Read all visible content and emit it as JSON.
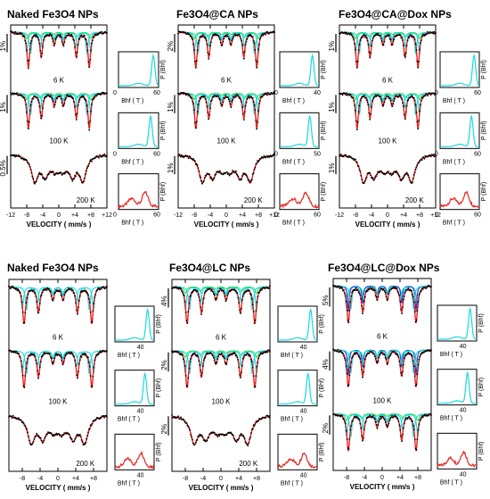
{
  "colors": {
    "data": "#000000",
    "fit": "#e8231f",
    "sextet_cyan": "#19d8df",
    "sextet_green": "#38e04a",
    "sextet_blue": "#2233cc",
    "dist": "#19d8df",
    "dist_200k": "#e8231f"
  },
  "chart_data": {
    "type": "line",
    "panels": [
      {
        "title": "Naked Fe3O4 NPs",
        "x_ticks": [
          "-12",
          "-8",
          "-4",
          "0",
          "+4",
          "+8",
          "+12"
        ],
        "xlim": [
          -12,
          12
        ],
        "x_label": "VELOCITY ( mm/s )",
        "spectra": [
          {
            "temperature": "6 K",
            "scale": "1%",
            "components": [
              "green",
              "cyan",
              "cyan"
            ]
          },
          {
            "temperature": "100 K",
            "scale": "1%",
            "components": [
              "green",
              "cyan",
              "cyan"
            ]
          },
          {
            "temperature": "200 K",
            "scale": "0.5%",
            "components": []
          }
        ],
        "distributions": [
          {
            "x_label": "Bhf ( T )",
            "y_label": "P (Bhf)",
            "ticks": [
              "0",
              "60"
            ],
            "peak": 52
          },
          {
            "x_label": "Bhf ( T )",
            "y_label": "P (Bhf)",
            "ticks": [
              "0",
              "60"
            ],
            "peak": 48
          },
          {
            "x_label": "Bhf ( T )",
            "y_label": "P (Bhf)",
            "ticks": [
              "0",
              "60"
            ],
            "peak": 40
          }
        ]
      },
      {
        "title": "Fe3O4@CA NPs",
        "x_ticks": [
          "-12",
          "-8",
          "-4",
          "0",
          "+4",
          "+8",
          "+12"
        ],
        "xlim": [
          -12,
          12
        ],
        "x_label": "VELOCITY ( mm/s )",
        "spectra": [
          {
            "temperature": "6 K",
            "scale": "2%",
            "components": [
              "green",
              "cyan",
              "cyan"
            ]
          },
          {
            "temperature": "100 K",
            "scale": "1%",
            "components": [
              "green",
              "cyan",
              "cyan"
            ]
          },
          {
            "temperature": "200 K",
            "scale": "1%",
            "components": []
          }
        ],
        "distributions": [
          {
            "x_label": "Bhf ( T )",
            "y_label": "P (Bhf)",
            "ticks": [
              "0",
              "40"
            ],
            "peak": 50
          },
          {
            "x_label": "Bhf ( T )",
            "y_label": "P (Bhf)",
            "ticks": [
              "0",
              "50"
            ],
            "peak": 46
          },
          {
            "x_label": "Bhf ( T )",
            "y_label": "P (Bhf)",
            "ticks": [
              "0",
              "60"
            ],
            "peak": 40
          }
        ]
      },
      {
        "title": "Fe3O4@CA@Dox  NPs",
        "x_ticks": [
          "-12",
          "-8",
          "-4",
          "0",
          "+4",
          "+8",
          "+12"
        ],
        "xlim": [
          -12,
          12
        ],
        "x_label": "VELOCITY ( mm/s )",
        "spectra": [
          {
            "temperature": "6 K",
            "scale": "1%",
            "components": [
              "green",
              "cyan",
              "cyan"
            ]
          },
          {
            "temperature": "100 K",
            "scale": "1%",
            "components": [
              "green",
              "cyan",
              "cyan"
            ]
          },
          {
            "temperature": "200 K",
            "scale": "1%",
            "components": []
          }
        ],
        "distributions": [
          {
            "x_label": "Bhf ( T )",
            "y_label": "P (Bhf)",
            "ticks": [
              "0",
              "60"
            ],
            "peak": 52
          },
          {
            "x_label": "Bhf ( T )",
            "y_label": "P (Bhf)",
            "ticks": [
              "0",
              "60"
            ],
            "peak": 48
          },
          {
            "x_label": "Bhf ( T )",
            "y_label": "P (Bhf)",
            "ticks": [
              "0",
              "60"
            ],
            "peak": 40
          }
        ]
      },
      {
        "title": "Naked Fe3O4 NPs",
        "x_ticks": [
          "-8",
          "-4",
          "0",
          "+4",
          "+8"
        ],
        "xlim": [
          -11,
          11
        ],
        "x_label": "VELOCITY ( mm/s )",
        "spectra": [
          {
            "temperature": "6 K",
            "scale": "",
            "components": [
              "cyan",
              "cyan"
            ]
          },
          {
            "temperature": "100 K",
            "scale": "",
            "components": [
              "cyan",
              "cyan"
            ]
          },
          {
            "temperature": "200 K",
            "scale": "",
            "components": []
          }
        ],
        "distributions": [
          {
            "x_label": "Bhf ( T )",
            "y_label": "P (Bhf)",
            "ticks": [
              "40"
            ],
            "peak": 50
          },
          {
            "x_label": "Bhf ( T )",
            "y_label": "P (Bhf)",
            "ticks": [
              "40"
            ],
            "peak": 46
          },
          {
            "x_label": "Bhf ( T )",
            "y_label": "P (Bhf)",
            "ticks": [
              "40"
            ],
            "peak": 40
          }
        ]
      },
      {
        "title": "Fe3O4@LC NPs",
        "x_ticks": [
          "-8",
          "-4",
          "0",
          "+4",
          "+8"
        ],
        "xlim": [
          -11,
          11
        ],
        "x_label": "VELOCITY ( mm/s )",
        "spectra": [
          {
            "temperature": "6 K",
            "scale": "4%",
            "components": [
              "green",
              "cyan",
              "cyan"
            ]
          },
          {
            "temperature": "100 K",
            "scale": "2%",
            "components": [
              "green",
              "cyan",
              "cyan"
            ]
          },
          {
            "temperature": "200 K",
            "scale": "2%",
            "components": []
          }
        ],
        "distributions": [
          {
            "x_label": "Bhf ( T )",
            "y_label": "P (Bhf)",
            "ticks": [
              "40"
            ],
            "peak": 50
          },
          {
            "x_label": "Bhf ( T )",
            "y_label": "P (Bhf)",
            "ticks": [
              "40"
            ],
            "peak": 46
          },
          {
            "x_label": "Bhf ( T )",
            "y_label": "P (Bhf)",
            "ticks": [
              "40"
            ],
            "peak": 40
          }
        ]
      },
      {
        "title": "Fe3O4@LC@Dox NPs",
        "x_ticks": [
          "-8",
          "-4",
          "0",
          "+4",
          "+8"
        ],
        "xlim": [
          -11,
          11
        ],
        "x_label": "VELOCITY ( mm/s )",
        "spectra": [
          {
            "temperature": "6 K",
            "scale": "5%",
            "components": [
              "cyan",
              "blue",
              "cyan"
            ]
          },
          {
            "temperature": "100 K",
            "scale": "4%",
            "components": [
              "blue",
              "cyan",
              "cyan"
            ]
          },
          {
            "temperature": "",
            "scale": "2%",
            "components": [
              "green",
              "cyan",
              "cyan"
            ]
          }
        ],
        "distributions": [
          {
            "x_label": "Bhf ( T )",
            "y_label": "P (Bhf)",
            "ticks": [
              "40"
            ],
            "peak": 50
          },
          {
            "x_label": "Bhf ( T )",
            "y_label": "P (Bhf)",
            "ticks": [
              "40"
            ],
            "peak": 46
          },
          {
            "x_label": "Bhf ( T )",
            "y_label": "P (Bhf)",
            "ticks": [
              "40"
            ],
            "peak": 40
          }
        ]
      }
    ]
  }
}
